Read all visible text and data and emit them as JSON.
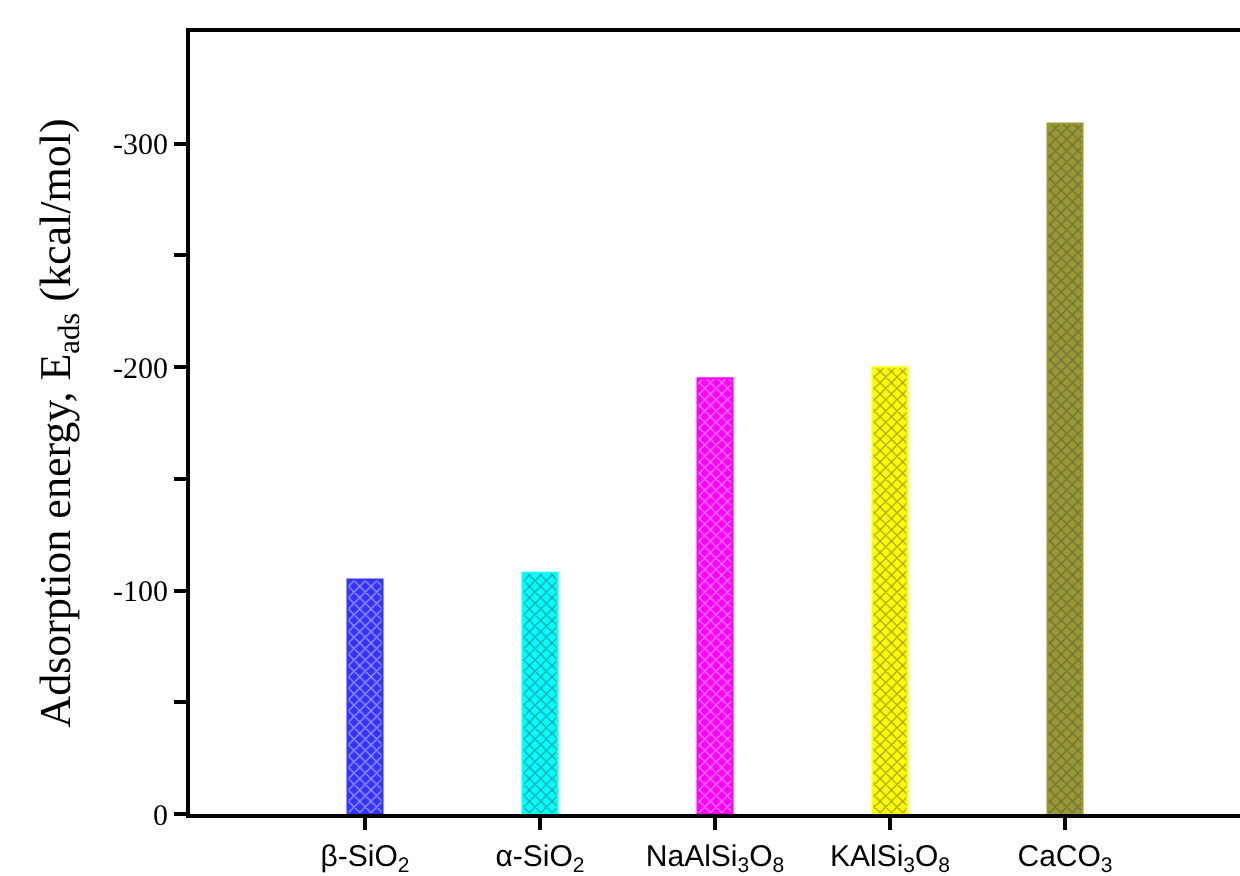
{
  "chart_data": {
    "type": "bar",
    "ylabel": "Adsorption energy, E$_{ads}$ (kcal/mol)",
    "categories": [
      "β-SiO$_{2}$",
      "α-SiO$_{2}$",
      "NaAlSi$_{3}$O$_{8}$",
      "KAlSi$_{3}$O$_{8}$",
      "CaCO$_{3}$"
    ],
    "values": [
      -105,
      -108,
      -195,
      -200,
      -309
    ],
    "colors": [
      "#3333ff",
      "#00ffff",
      "#ff00ff",
      "#ffff00",
      "#999933"
    ],
    "ylim": [
      0,
      -350
    ],
    "yticks": [
      0,
      {
        "value": -50,
        "label": null
      },
      -100,
      {
        "value": -150,
        "label": null
      },
      -200,
      {
        "value": -250,
        "label": null
      },
      -300
    ]
  }
}
